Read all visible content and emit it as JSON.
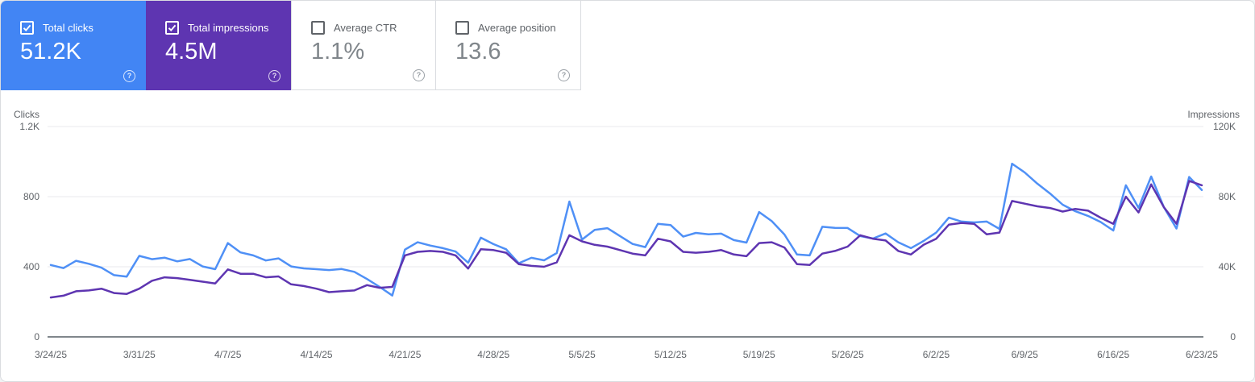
{
  "cards": [
    {
      "label": "Total clicks",
      "value": "51.2K",
      "checked": true,
      "selected": true,
      "bg": "#4285f4"
    },
    {
      "label": "Total impressions",
      "value": "4.5M",
      "checked": true,
      "selected": true,
      "bg": "#5e35b1"
    },
    {
      "label": "Average CTR",
      "value": "1.1%",
      "checked": false,
      "selected": false,
      "bg": "#ffffff"
    },
    {
      "label": "Average position",
      "value": "13.6",
      "checked": false,
      "selected": false,
      "bg": "#ffffff"
    }
  ],
  "help_icon_glyph": "?",
  "chart_data": {
    "type": "line",
    "grid": true,
    "legend_position": "none",
    "x_tick_labels": [
      "3/24/25",
      "3/31/25",
      "4/7/25",
      "4/14/25",
      "4/21/25",
      "4/28/25",
      "5/5/25",
      "5/12/25",
      "5/19/25",
      "5/26/25",
      "6/2/25",
      "6/9/25",
      "6/16/25",
      "6/23/25"
    ],
    "left_axis": {
      "title": "Clicks",
      "ticks_bottom_up": [
        "0",
        "400",
        "800",
        "1.2K"
      ],
      "range": [
        0,
        1200
      ]
    },
    "right_axis": {
      "title": "Impressions",
      "ticks_bottom_up": [
        "0",
        "40K",
        "80K",
        "120K"
      ],
      "range": [
        0,
        120000
      ]
    },
    "colors": {
      "grid": "#e8eaed",
      "axis_line": "#80868b",
      "tick_text": "#5f6368"
    },
    "series": [
      {
        "name": "Total clicks",
        "axis": "left",
        "color": "#4f90f6",
        "values": [
          410,
          392,
          434,
          417,
          395,
          352,
          344,
          462,
          443,
          452,
          431,
          444,
          402,
          386,
          535,
          482,
          465,
          436,
          448,
          402,
          391,
          386,
          381,
          387,
          371,
          330,
          285,
          236,
          498,
          540,
          521,
          506,
          487,
          423,
          566,
          529,
          500,
          420,
          451,
          437,
          478,
          772,
          555,
          610,
          620,
          575,
          530,
          512,
          645,
          638,
          572,
          593,
          585,
          589,
          552,
          538,
          712,
          660,
          584,
          470,
          465,
          628,
          622,
          621,
          575,
          561,
          590,
          540,
          506,
          547,
          595,
          680,
          658,
          653,
          658,
          616,
          988,
          938,
          874,
          818,
          754,
          717,
          690,
          655,
          607,
          865,
          736,
          915,
          740,
          618,
          912,
          838
        ]
      },
      {
        "name": "Total impressions",
        "axis": "right",
        "color": "#5e35b1",
        "values": [
          22500,
          23500,
          26000,
          26500,
          27500,
          25000,
          24500,
          27500,
          32000,
          34000,
          33500,
          32500,
          31500,
          30500,
          38500,
          36000,
          36000,
          34000,
          34500,
          30000,
          29000,
          27500,
          25500,
          26000,
          26500,
          29500,
          28000,
          28500,
          46500,
          48500,
          49000,
          48500,
          46500,
          39000,
          50000,
          49500,
          48000,
          41500,
          40500,
          40000,
          42500,
          58000,
          54500,
          52500,
          51500,
          49500,
          47500,
          46500,
          56000,
          54500,
          48500,
          48000,
          48500,
          49500,
          47000,
          46000,
          53500,
          54000,
          51000,
          41500,
          41000,
          47500,
          49000,
          51500,
          58000,
          56000,
          55000,
          49000,
          47000,
          52500,
          56000,
          64000,
          65000,
          64500,
          58500,
          59500,
          77500,
          76000,
          74500,
          73500,
          71500,
          73000,
          72000,
          68000,
          64500,
          80000,
          71000,
          87000,
          74000,
          64500,
          89000,
          86500
        ]
      }
    ]
  }
}
